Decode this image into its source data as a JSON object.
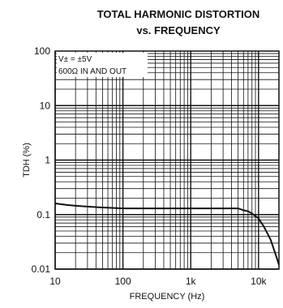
{
  "chart_data": {
    "type": "line",
    "title": "TOTAL HARMONIC DISTORTION",
    "subtitle": "vs. FREQUENCY",
    "xlabel": "FREQUENCY (Hz)",
    "ylabel": "TDH (%)",
    "x_scale": "log",
    "y_scale": "log",
    "xlim": [
      10,
      20000
    ],
    "ylim": [
      0.01,
      100
    ],
    "x_ticks": [
      10,
      100,
      1000,
      10000
    ],
    "x_tick_labels": [
      "10",
      "100",
      "1k",
      "10k"
    ],
    "y_ticks": [
      0.01,
      0.1,
      1,
      10,
      100
    ],
    "y_tick_labels": [
      "0.01",
      "0.1",
      "1",
      "10",
      "100"
    ],
    "grid": true,
    "annotations": [
      "V± = ±5V",
      "600Ω IN AND OUT"
    ],
    "series": [
      {
        "x": [
          10,
          15,
          20,
          30,
          50,
          100,
          200,
          500,
          1000,
          2000,
          4000,
          5000,
          6000,
          7000,
          8000,
          10000,
          12000,
          15000,
          18000,
          20000
        ],
        "y": [
          0.16,
          0.15,
          0.145,
          0.14,
          0.135,
          0.13,
          0.13,
          0.13,
          0.13,
          0.13,
          0.13,
          0.13,
          0.12,
          0.115,
          0.105,
          0.085,
          0.06,
          0.035,
          0.018,
          0.012
        ]
      }
    ]
  },
  "colors": {
    "line": "#111111",
    "grid": "#111111",
    "background": "#ffffff"
  }
}
